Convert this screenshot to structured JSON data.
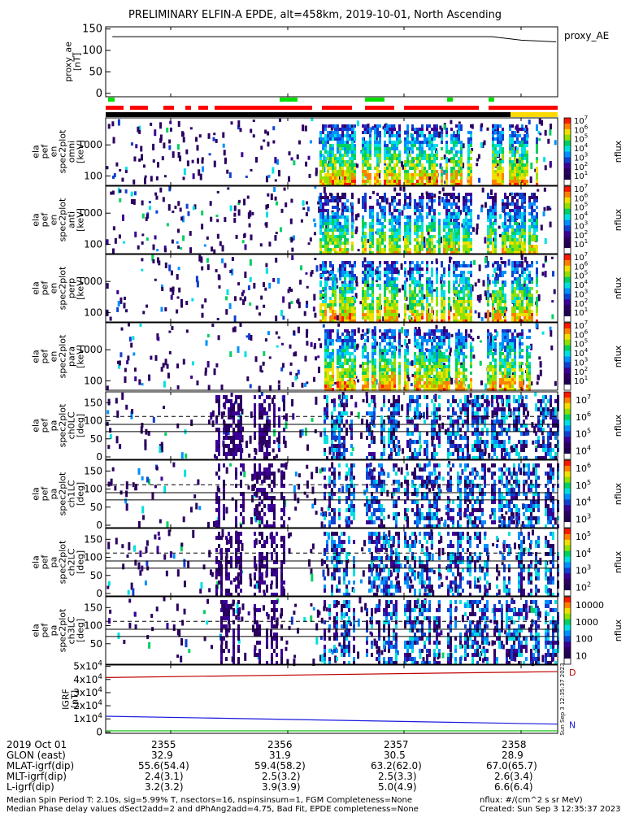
{
  "title": "PRELIMINARY ELFIN-A EPDE, alt=458km, 2019-10-01, North Ascending",
  "colors": {
    "proxy_line": "#000000",
    "science_zone": "#00e000",
    "epd_flag": "#ff0000",
    "sun_flag": "#000000",
    "sun_flag2": "#ffd800",
    "igrf_d": "#c00000",
    "igrf_n": "#1818e0",
    "igrf_third": "#00c000"
  },
  "proxy": {
    "ylabel": [
      "proxy_ae",
      "[nT]"
    ],
    "yticks": [
      "150",
      "100",
      "50",
      "0"
    ],
    "legend": "proxy_AE"
  },
  "spec_panels": [
    {
      "ylabel": [
        "ela",
        "pef",
        "en",
        "spec2plot",
        "omni",
        "[keV]"
      ],
      "yticks": [
        "1000",
        "100"
      ],
      "cbar_ticks": [
        "10^7",
        "10^6",
        "10^5",
        "10^4",
        "10^3",
        "10^2",
        "10^1"
      ],
      "cbar_label": "nflux"
    },
    {
      "ylabel": [
        "ela",
        "pef",
        "en",
        "spec2plot",
        "anti",
        "[keV]"
      ],
      "yticks": [
        "1000",
        "100"
      ],
      "cbar_ticks": [
        "10^7",
        "10^6",
        "10^5",
        "10^4",
        "10^3",
        "10^2",
        "10^1"
      ],
      "cbar_label": "nflux"
    },
    {
      "ylabel": [
        "ela",
        "pef",
        "en",
        "spec2plot",
        "perp",
        "[keV]"
      ],
      "yticks": [
        "1000",
        "100"
      ],
      "cbar_ticks": [
        "10^7",
        "10^6",
        "10^5",
        "10^4",
        "10^3",
        "10^2",
        "10^1"
      ],
      "cbar_label": "nflux"
    },
    {
      "ylabel": [
        "ela",
        "pef",
        "en",
        "spec2plot",
        "para",
        "[keV]"
      ],
      "yticks": [
        "1000",
        "100"
      ],
      "cbar_ticks": [
        "10^7",
        "10^6",
        "10^5",
        "10^4",
        "10^3",
        "10^2",
        "10^1"
      ],
      "cbar_label": "nflux"
    }
  ],
  "pa_panels": [
    {
      "ylabel": [
        "ela",
        "pef",
        "pa",
        "spec2plot",
        "ch0LC",
        "[deg]"
      ],
      "yticks": [
        "150",
        "100",
        "50",
        "0"
      ],
      "cbar_ticks": [
        "10^7",
        "10^6",
        "10^5",
        "10^4"
      ],
      "cbar_label": "nflux"
    },
    {
      "ylabel": [
        "ela",
        "pef",
        "pa",
        "spec2plot",
        "ch1LC",
        "[deg]"
      ],
      "yticks": [
        "150",
        "100",
        "50",
        "0"
      ],
      "cbar_ticks": [
        "10^6",
        "10^5",
        "10^4",
        "10^3"
      ],
      "cbar_label": "nflux"
    },
    {
      "ylabel": [
        "ela",
        "pef",
        "pa",
        "spec2plot",
        "ch2LC",
        "[deg]"
      ],
      "yticks": [
        "150",
        "100",
        "50",
        "0"
      ],
      "cbar_ticks": [
        "10^5",
        "10^4",
        "10^3",
        "10^2"
      ],
      "cbar_label": "nflux"
    },
    {
      "ylabel": [
        "ela",
        "pef",
        "pa",
        "spec2plot",
        "ch3LC",
        "[deg]"
      ],
      "yticks": [
        "150",
        "100",
        "50"
      ],
      "cbar_ticks": [
        "10000",
        "1000",
        "100",
        "10"
      ],
      "cbar_label": "nflux"
    }
  ],
  "igrf": {
    "ylabel": [
      "IGRF",
      "[nT]"
    ],
    "yticks": [
      "5x10^4",
      "4x10^4",
      "3x10^4",
      "2x10^4",
      "1x10^4",
      "0"
    ],
    "label_d": "D",
    "label_n": "N",
    "right_stamp": "Sun Sep  3 12:35:37 2023"
  },
  "chart_data": {
    "type": "line",
    "title": "PRELIMINARY ELFIN-A EPDE, alt=458km, 2019-10-01, North Ascending",
    "x_ticks": [
      "2355",
      "2356",
      "2357",
      "2358"
    ],
    "series": [
      {
        "name": "proxy_AE",
        "x": [
          2354.5,
          2355,
          2356,
          2357,
          2357.75,
          2358.0,
          2358.3
        ],
        "y": [
          132,
          132,
          132,
          132,
          132,
          124,
          120
        ]
      },
      {
        "name": "D",
        "x": [
          2354.5,
          2358.6
        ],
        "y": [
          41500,
          46000
        ]
      },
      {
        "name": "N",
        "x": [
          2354.5,
          2358.6
        ],
        "y": [
          12000,
          6000
        ]
      }
    ],
    "proxy_ylim": [
      -8,
      155
    ],
    "igrf_ylim": [
      -1000,
      51000
    ]
  },
  "table": {
    "rows": [
      {
        "label": "2019 Oct 01",
        "values": [
          "2355",
          "2356",
          "2357",
          "2358"
        ]
      },
      {
        "label": "GLON (east)",
        "values": [
          "32.9",
          "31.9",
          "30.5",
          "28.9"
        ]
      },
      {
        "label": "MLAT-igrf(dip)",
        "values": [
          "55.6(54.4)",
          "59.4(58.2)",
          "63.2(62.0)",
          "67.0(65.7)"
        ]
      },
      {
        "label": "MLT-igrf(dip)",
        "values": [
          "2.4(3.1)",
          "2.5(3.2)",
          "2.5(3.3)",
          "2.6(3.4)"
        ]
      },
      {
        "label": "L-igrf(dip)",
        "values": [
          "3.2(3.2)",
          "3.9(3.9)",
          "5.0(4.9)",
          "6.6(6.4)"
        ]
      }
    ]
  },
  "footer": {
    "line1": "Median Spin Period T: 2.10s, sig=5.99% T, nsectors=16, nspinsinsum=1, FGM Completeness=None",
    "line2": "Median Phase delay values dSect2add=2 and dPhAng2add=4.75, Bad Fit, EPDE completeness=None",
    "units": "nflux: #/(cm^2 s sr MeV)",
    "created": "Created: Sun Sep  3 12:35:37 2023"
  }
}
